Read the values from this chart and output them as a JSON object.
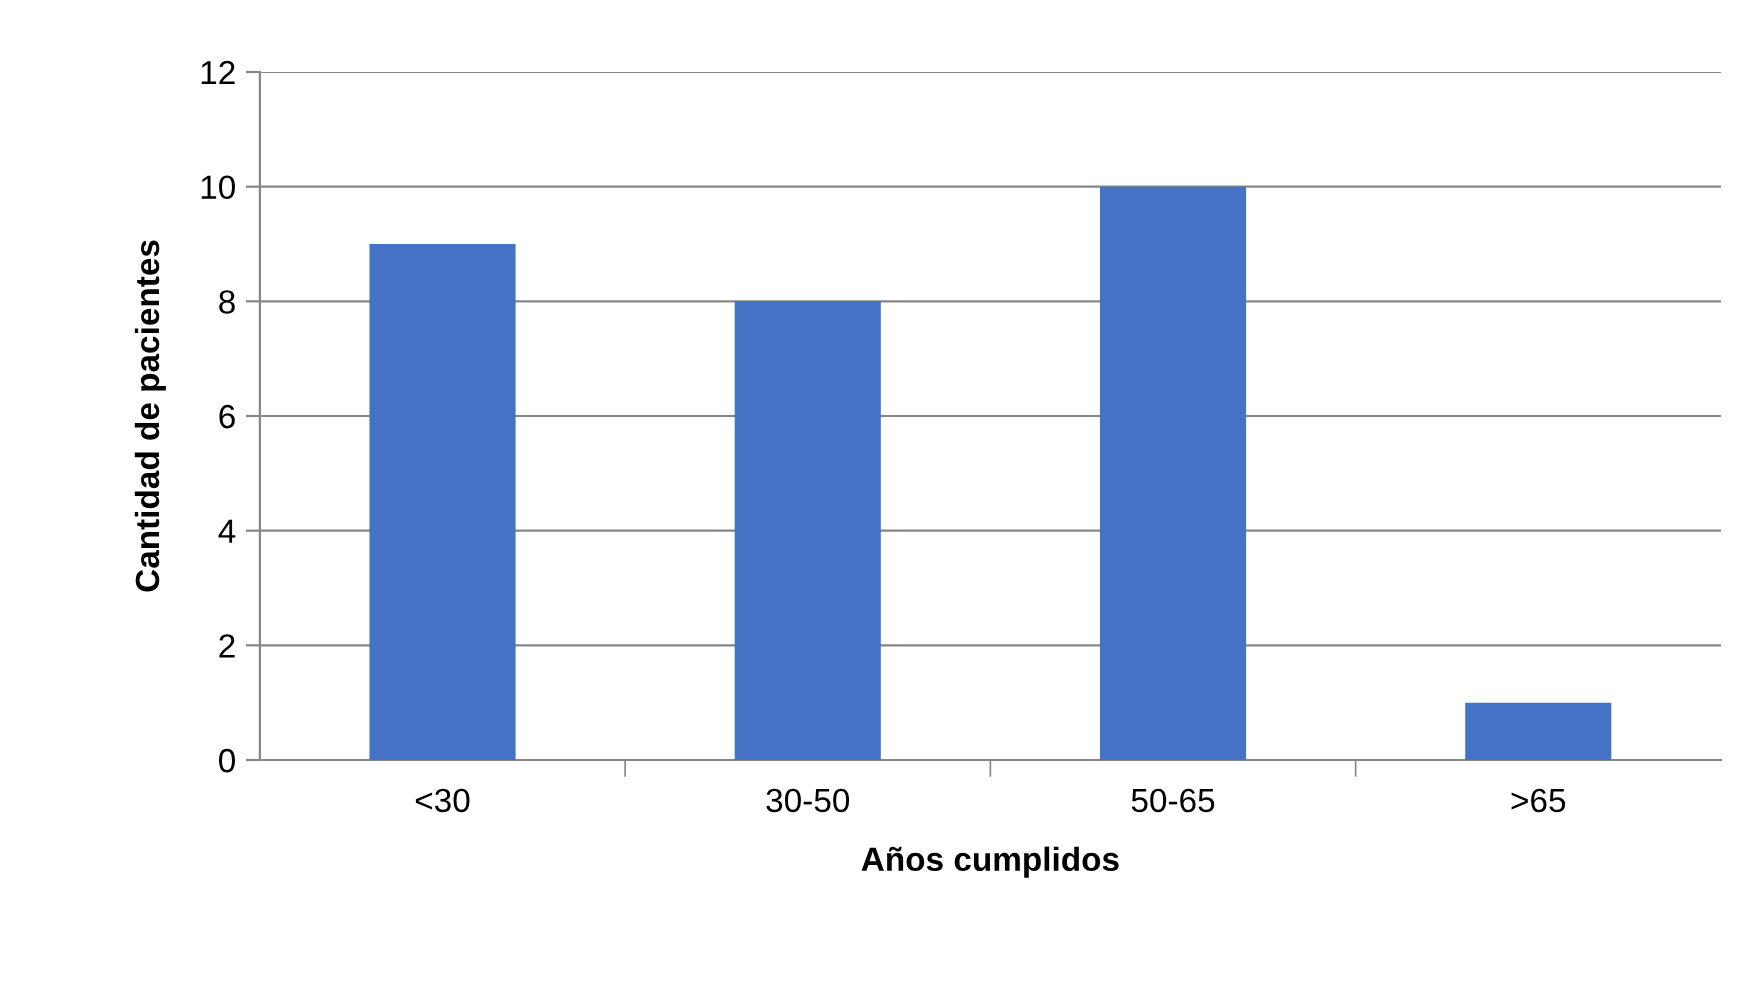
{
  "chart_data": {
    "type": "bar",
    "xlabel": "Años cumplidos",
    "ylabel": "Cantidad de pacientes",
    "categories": [
      "<30",
      "30-50",
      "50-65",
      ">65"
    ],
    "values": [
      9,
      8,
      10,
      1
    ],
    "color": "#4472c4",
    "ylim": [
      0,
      12
    ],
    "yticks": [
      0,
      2,
      4,
      6,
      8,
      10,
      12
    ],
    "grid": "y",
    "legend": false
  }
}
